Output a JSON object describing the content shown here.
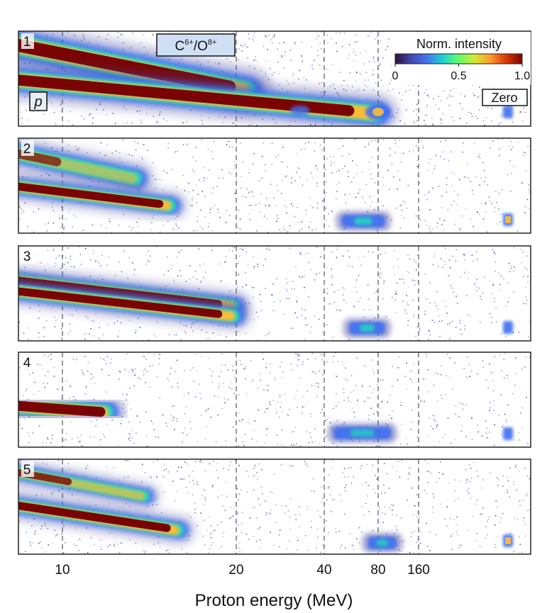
{
  "chart_data": {
    "type": "heatmap",
    "xlabel": "Proton energy (MeV)",
    "x_scale": "log",
    "x_ticks": [
      10,
      20,
      40,
      80,
      160
    ],
    "x_tick_labels": [
      "10",
      "20",
      "40",
      "80",
      "160"
    ],
    "dashed_lines_at": [
      10,
      20,
      40,
      80,
      160
    ],
    "colorbar": {
      "title": "Norm. intensity",
      "min": 0,
      "max": 1.0,
      "tick_labels": [
        "0",
        "0.5",
        "1.0"
      ],
      "tick_values": [
        0,
        0.5,
        1.0
      ],
      "colormap": "turbo"
    },
    "labels": {
      "ion_species": "C",
      "ion_species_sup": "6+",
      "ion_separator": "/O",
      "ion_species2_sup": "8+",
      "proton": "p",
      "zero": "Zero"
    },
    "panels": [
      {
        "id": "1",
        "traces": [
          {
            "species": "ion",
            "max_energy": 22,
            "intensity": 1.0
          },
          {
            "species": "proton",
            "max_energy": 80,
            "intensity": 1.0
          }
        ]
      },
      {
        "id": "2",
        "traces": [
          {
            "species": "ion",
            "max_energy": 13.5,
            "intensity": 0.6
          },
          {
            "species": "proton",
            "max_energy": 15.5,
            "intensity": 1.0
          },
          {
            "species": "high-energy spot",
            "energy_range": [
              50,
              90
            ],
            "intensity": 0.5
          }
        ]
      },
      {
        "id": "3",
        "traces": [
          {
            "species": "ion",
            "max_energy": 20,
            "intensity": 1.0
          },
          {
            "species": "proton",
            "max_energy": 20,
            "intensity": 1.0
          },
          {
            "species": "high-energy spot",
            "energy_range": [
              55,
              90
            ],
            "intensity": 0.45
          }
        ]
      },
      {
        "id": "4",
        "traces": [
          {
            "species": "proton",
            "max_energy": 12,
            "intensity": 1.0
          },
          {
            "species": "high-energy spot",
            "energy_range": [
              45,
              100
            ],
            "intensity": 0.35
          }
        ]
      },
      {
        "id": "5",
        "traces": [
          {
            "species": "ion",
            "max_energy": 14,
            "intensity": 0.7
          },
          {
            "species": "proton",
            "max_energy": 16,
            "intensity": 1.0
          },
          {
            "species": "high-energy spot",
            "energy_range": [
              70,
              110
            ],
            "intensity": 0.35
          }
        ]
      }
    ]
  },
  "colors": {
    "frame": "#222222",
    "dash": "#555555",
    "noise": "#4a4aa0",
    "low": "#30123b",
    "blue": "#3e6ff0",
    "cyan": "#1ae4b6",
    "yellow": "#fabb39",
    "red": "#7a0403"
  }
}
